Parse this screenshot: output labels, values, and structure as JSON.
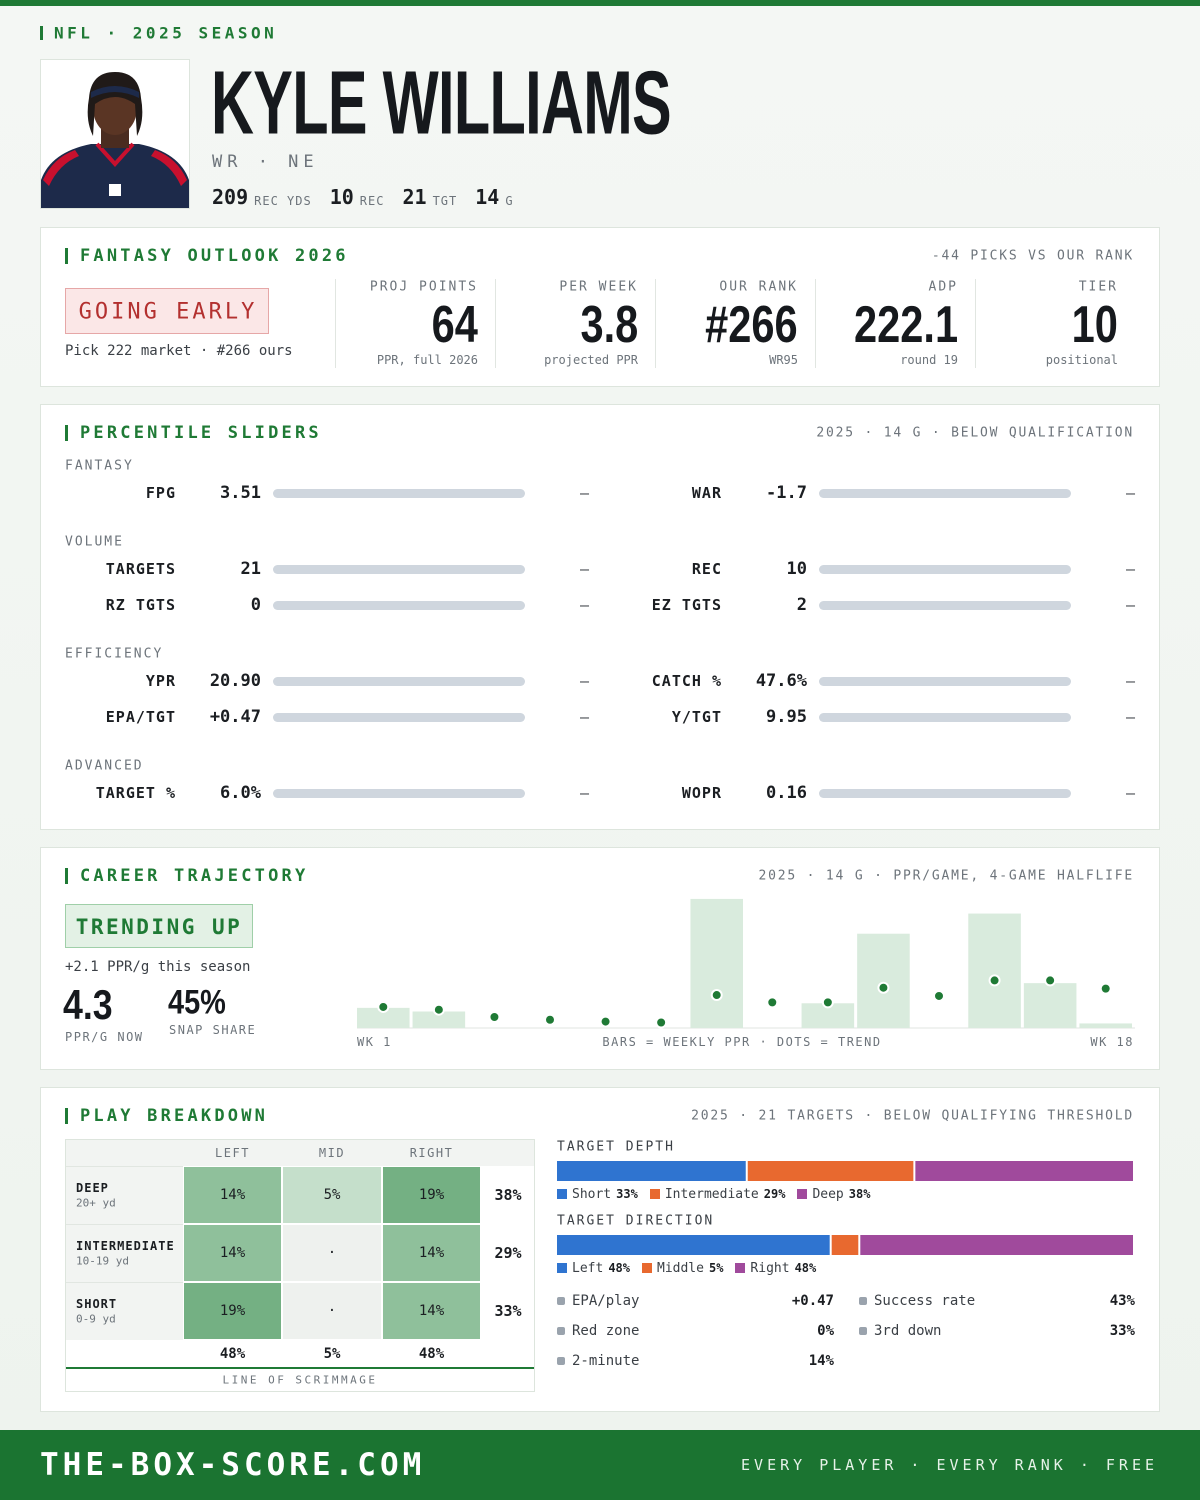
{
  "header": {
    "league": "NFL · 2025 SEASON",
    "name": "KYLE WILLIAMS",
    "position": "WR · NE",
    "stats": [
      {
        "value": "209",
        "label": "REC YDS"
      },
      {
        "value": "10",
        "label": "REC"
      },
      {
        "value": "21",
        "label": "TGT"
      },
      {
        "value": "14",
        "label": "G"
      }
    ]
  },
  "outlook": {
    "title": "FANTASY OUTLOOK 2026",
    "note": "-44 PICKS VS OUR RANK",
    "badge": "GOING EARLY",
    "badge_sub": "Pick 222 market · #266 ours",
    "metrics": [
      {
        "label": "PROJ POINTS",
        "value": "64",
        "sub": "PPR, full 2026"
      },
      {
        "label": "PER WEEK",
        "value": "3.8",
        "sub": "projected PPR"
      },
      {
        "label": "OUR RANK",
        "value": "#266",
        "sub": "WR95"
      },
      {
        "label": "ADP",
        "value": "222.1",
        "sub": "round 19"
      },
      {
        "label": "TIER",
        "value": "10",
        "sub": "positional"
      }
    ]
  },
  "percentiles": {
    "title": "PERCENTILE SLIDERS",
    "note": "2025 · 14 G · BELOW QUALIFICATION",
    "groups": [
      {
        "name": "FANTASY",
        "rows": [
          [
            {
              "label": "FPG",
              "value": "3.51",
              "rank": "—"
            },
            {
              "label": "WAR",
              "value": "-1.7",
              "rank": "—"
            }
          ]
        ]
      },
      {
        "name": "VOLUME",
        "rows": [
          [
            {
              "label": "TARGETS",
              "value": "21",
              "rank": "—"
            },
            {
              "label": "REC",
              "value": "10",
              "rank": "—"
            }
          ],
          [
            {
              "label": "RZ TGTS",
              "value": "0",
              "rank": "—"
            },
            {
              "label": "EZ TGTS",
              "value": "2",
              "rank": "—"
            }
          ]
        ]
      },
      {
        "name": "EFFICIENCY",
        "rows": [
          [
            {
              "label": "YPR",
              "value": "20.90",
              "rank": "—"
            },
            {
              "label": "CATCH %",
              "value": "47.6%",
              "rank": "—"
            }
          ],
          [
            {
              "label": "EPA/TGT",
              "value": "+0.47",
              "rank": "—"
            },
            {
              "label": "Y/TGT",
              "value": "9.95",
              "rank": "—"
            }
          ]
        ]
      },
      {
        "name": "ADVANCED",
        "rows": [
          [
            {
              "label": "TARGET %",
              "value": "6.0%",
              "rank": "—"
            },
            {
              "label": "WOPR",
              "value": "0.16",
              "rank": "—"
            }
          ]
        ]
      }
    ]
  },
  "trajectory": {
    "title": "CAREER TRAJECTORY",
    "note": "2025 · 14 G · PPR/GAME, 4-GAME HALFLIFE",
    "badge": "TRENDING UP",
    "badge_sub": "+2.1 PPR/g this season",
    "ppr_now": "4.3",
    "ppr_now_label": "PPR/G NOW",
    "snap": "45%",
    "snap_label": "SNAP SHARE",
    "x_start": "WK 1",
    "x_note": "BARS = WEEKLY PPR · DOTS = TREND",
    "x_end": "WK 18"
  },
  "chart_data": {
    "type": "bar",
    "values": [
      2.2,
      1.8,
      0,
      0,
      0,
      0,
      14.1,
      0,
      2.7,
      10.3,
      0,
      12.5,
      4.9,
      0.5
    ],
    "trend": [
      2.3,
      2.0,
      1.2,
      0.9,
      0.7,
      0.6,
      3.6,
      2.8,
      2.8,
      4.4,
      3.5,
      5.2,
      5.2,
      4.3
    ],
    "color": "#d9ebdd",
    "trend_color": "#1f7a35",
    "ylim": [
      0,
      14.2
    ]
  },
  "breakdown": {
    "title": "PLAY BREAKDOWN",
    "note": "2025 · 21 TARGETS · BELOW QUALIFYING THRESHOLD",
    "columns": [
      "LEFT",
      "MID",
      "RIGHT"
    ],
    "rows": [
      {
        "name": "DEEP",
        "sub": "20+ yd",
        "cells": [
          "14%",
          "5%",
          "19%"
        ],
        "colors": [
          "#8fc09b",
          "#c5dfcb",
          "#74b083"
        ],
        "total": "38%"
      },
      {
        "name": "INTERMEDIATE",
        "sub": "10-19 yd",
        "cells": [
          "14%",
          "·",
          "14%"
        ],
        "colors": [
          "#8fc09b",
          "#eef1ee",
          "#8fc09b"
        ],
        "total": "29%"
      },
      {
        "name": "SHORT",
        "sub": "0-9 yd",
        "cells": [
          "19%",
          "·",
          "14%"
        ],
        "colors": [
          "#74b083",
          "#eef1ee",
          "#8fc09b"
        ],
        "total": "33%"
      }
    ],
    "col_totals": [
      "48%",
      "5%",
      "48%"
    ],
    "footer": "LINE OF SCRIMMAGE",
    "depth": {
      "title": "TARGET DEPTH",
      "segments": [
        {
          "name": "Short",
          "value": 33,
          "label": "33%",
          "color": "#2f74d0"
        },
        {
          "name": "Intermediate",
          "value": 29,
          "label": "29%",
          "color": "#e8692f"
        },
        {
          "name": "Deep",
          "value": 38,
          "label": "38%",
          "color": "#a04a9c"
        }
      ]
    },
    "direction": {
      "title": "TARGET DIRECTION",
      "segments": [
        {
          "name": "Left",
          "value": 48,
          "label": "48%",
          "color": "#2f74d0"
        },
        {
          "name": "Middle",
          "value": 5,
          "label": "5%",
          "color": "#e8692f"
        },
        {
          "name": "Right",
          "value": 48,
          "label": "48%",
          "color": "#a04a9c"
        }
      ]
    },
    "stats": [
      {
        "label": "EPA/play",
        "value": "+0.47"
      },
      {
        "label": "Success rate",
        "value": "43%"
      },
      {
        "label": "Red zone",
        "value": "0%"
      },
      {
        "label": "3rd down",
        "value": "33%"
      },
      {
        "label": "2-minute",
        "value": "14%"
      }
    ]
  },
  "footer": {
    "site": "THE-BOX-SCORE.COM",
    "tagline": "EVERY PLAYER · EVERY RANK · FREE"
  }
}
